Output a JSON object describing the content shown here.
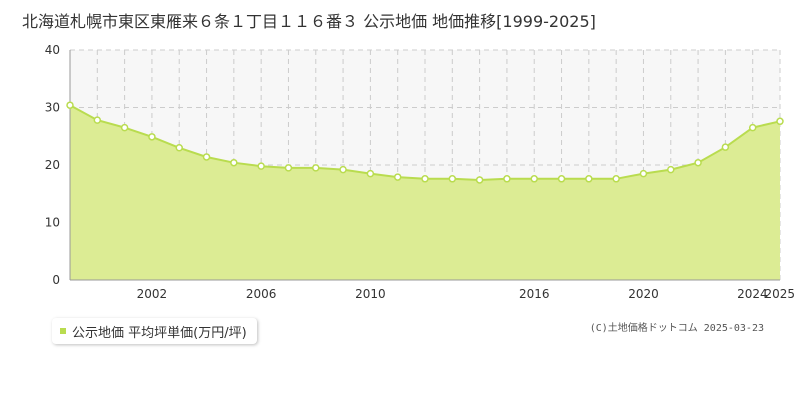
{
  "colors": {
    "area_fill": "#dcec94",
    "line": "#b9dc4f",
    "marker_fill": "#ffffff",
    "grid": "#cccccc",
    "axis": "#999999",
    "plot_bg": "#f7f7f7"
  },
  "chart_data": {
    "type": "area",
    "title": "北海道札幌市東区東雁来６条１丁目１１６番３ 公示地価 地価推移[1999-2025]",
    "xlabel": "",
    "ylabel": "",
    "xlim": [
      1999,
      2025
    ],
    "ylim": [
      0,
      40
    ],
    "yticks": [
      0,
      10,
      20,
      30,
      40
    ],
    "xticks": [
      2002,
      2006,
      2010,
      2016,
      2020,
      2024,
      2025
    ],
    "grid": true,
    "legend_position": "bottom-left",
    "series": [
      {
        "name": "公示地価 平均坪単価(万円/坪)",
        "x": [
          1999,
          2000,
          2001,
          2002,
          2003,
          2004,
          2005,
          2006,
          2007,
          2008,
          2009,
          2010,
          2011,
          2012,
          2013,
          2014,
          2015,
          2016,
          2017,
          2018,
          2019,
          2020,
          2021,
          2022,
          2023,
          2024,
          2025
        ],
        "y": [
          30.4,
          27.8,
          26.5,
          24.9,
          23.0,
          21.4,
          20.4,
          19.8,
          19.5,
          19.5,
          19.2,
          18.5,
          17.9,
          17.6,
          17.6,
          17.4,
          17.6,
          17.6,
          17.6,
          17.6,
          17.6,
          18.5,
          19.2,
          20.4,
          23.1,
          26.5,
          27.6
        ]
      }
    ]
  },
  "credit": "(C)土地価格ドットコム 2025-03-23"
}
